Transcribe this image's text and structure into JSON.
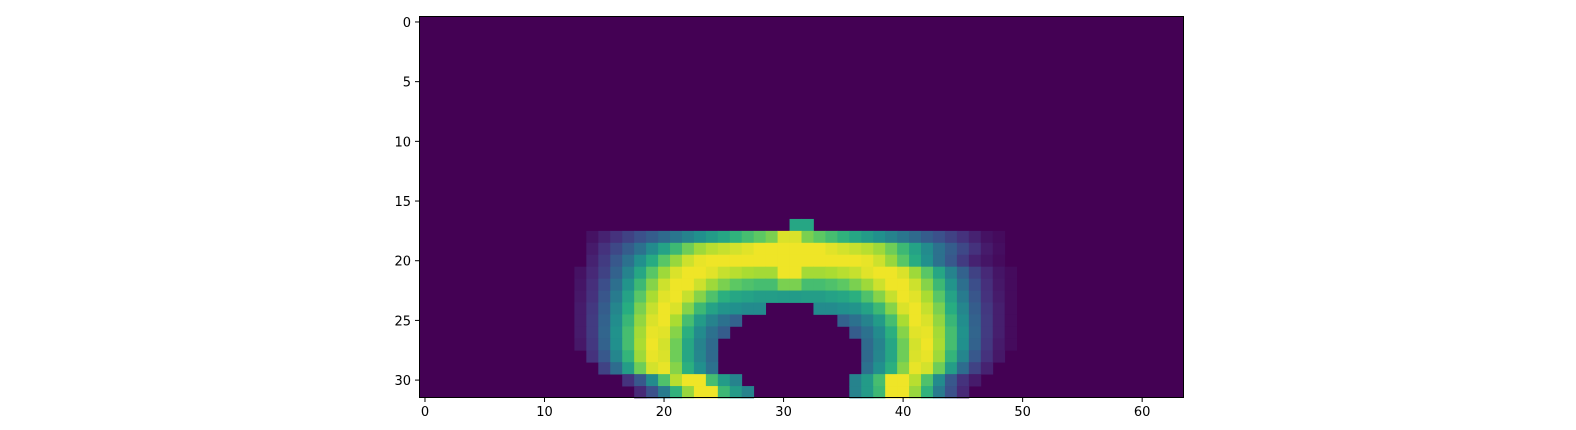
{
  "chart_data": {
    "type": "heatmap",
    "title": "",
    "xlabel": "",
    "ylabel": "",
    "shape": [
      32,
      64
    ],
    "xlim": [
      -0.5,
      63.5
    ],
    "ylim": [
      31.5,
      -0.5
    ],
    "origin": "upper",
    "colormap": "viridis",
    "value_range": [
      0,
      1
    ],
    "x_ticks": [
      0,
      10,
      20,
      30,
      40,
      50,
      60
    ],
    "y_ticks": [
      0,
      5,
      10,
      15,
      20,
      25,
      30
    ],
    "x_tick_labels": [
      "0",
      "10",
      "20",
      "30",
      "40",
      "50",
      "60"
    ],
    "y_tick_labels": [
      "0",
      "5",
      "10",
      "15",
      "20",
      "25",
      "30"
    ],
    "background_value": 0,
    "grid": false,
    "legend": "none",
    "rows": [
      {
        "row": 17,
        "start": 31,
        "values": [
          0.6,
          0.6
        ]
      },
      {
        "row": 18,
        "start": 14,
        "values": [
          0.05,
          0.1,
          0.15,
          0.2,
          0.25,
          0.3,
          0.35,
          0.4,
          0.45,
          0.5,
          0.55,
          0.6,
          0.65,
          0.7,
          0.75,
          0.8,
          0.95,
          0.95,
          0.8,
          0.75,
          0.7,
          0.65,
          0.6,
          0.55,
          0.5,
          0.45,
          0.4,
          0.35,
          0.3,
          0.25,
          0.2,
          0.15,
          0.1,
          0.05,
          0.03
        ]
      },
      {
        "row": 19,
        "start": 14,
        "values": [
          0.08,
          0.15,
          0.22,
          0.3,
          0.38,
          0.48,
          0.58,
          0.68,
          0.78,
          0.86,
          0.9,
          0.92,
          0.94,
          0.96,
          0.98,
          0.98,
          0.98,
          0.98,
          0.98,
          0.98,
          0.96,
          0.94,
          0.92,
          0.9,
          0.86,
          0.78,
          0.68,
          0.58,
          0.48,
          0.38,
          0.3,
          0.22,
          0.15,
          0.08,
          0.04
        ]
      },
      {
        "row": 20,
        "start": 14,
        "values": [
          0.1,
          0.18,
          0.28,
          0.38,
          0.5,
          0.62,
          0.74,
          0.85,
          0.93,
          0.97,
          0.98,
          0.98,
          0.98,
          0.98,
          0.98,
          0.98,
          0.98,
          0.98,
          0.98,
          0.98,
          0.98,
          0.98,
          0.98,
          0.97,
          0.93,
          0.85,
          0.74,
          0.62,
          0.5,
          0.38,
          0.28,
          0.18,
          0.1,
          0.06,
          0.03
        ]
      },
      {
        "row": 21,
        "start": 13,
        "values": [
          0.05,
          0.12,
          0.2,
          0.32,
          0.45,
          0.6,
          0.74,
          0.86,
          0.95,
          0.98,
          0.98,
          0.96,
          0.92,
          0.9,
          0.88,
          0.87,
          0.87,
          0.98,
          0.98,
          0.87,
          0.87,
          0.88,
          0.9,
          0.92,
          0.96,
          0.98,
          0.98,
          0.95,
          0.86,
          0.74,
          0.6,
          0.45,
          0.32,
          0.2,
          0.12,
          0.06,
          0.03
        ]
      },
      {
        "row": 22,
        "start": 13,
        "values": [
          0.06,
          0.14,
          0.24,
          0.37,
          0.52,
          0.68,
          0.82,
          0.93,
          0.98,
          0.98,
          0.93,
          0.86,
          0.8,
          0.75,
          0.72,
          0.7,
          0.7,
          0.8,
          0.8,
          0.7,
          0.7,
          0.72,
          0.75,
          0.8,
          0.86,
          0.93,
          0.98,
          0.98,
          0.93,
          0.82,
          0.68,
          0.52,
          0.37,
          0.24,
          0.14,
          0.07,
          0.03
        ]
      },
      {
        "row": 23,
        "start": 13,
        "values": [
          0.07,
          0.15,
          0.27,
          0.42,
          0.58,
          0.74,
          0.88,
          0.96,
          0.98,
          0.92,
          0.82,
          0.72,
          0.64,
          0.6,
          0.58,
          0.56,
          0.56,
          0.55,
          0.55,
          0.56,
          0.56,
          0.58,
          0.6,
          0.64,
          0.72,
          0.82,
          0.92,
          0.98,
          0.96,
          0.88,
          0.74,
          0.58,
          0.42,
          0.27,
          0.15,
          0.08,
          0.03
        ]
      },
      {
        "row": 24,
        "start": 13,
        "values": [
          0.08,
          0.17,
          0.3,
          0.46,
          0.63,
          0.8,
          0.92,
          0.98,
          0.95,
          0.82,
          0.68,
          0.58,
          0.52,
          0.5,
          0.48,
          0.48,
          0,
          0,
          0,
          0,
          0.48,
          0.48,
          0.5,
          0.52,
          0.58,
          0.68,
          0.82,
          0.95,
          0.98,
          0.92,
          0.8,
          0.63,
          0.46,
          0.3,
          0.17,
          0.09,
          0.03
        ]
      },
      {
        "row": 25,
        "start": 13,
        "values": [
          0.08,
          0.18,
          0.32,
          0.49,
          0.67,
          0.84,
          0.95,
          0.98,
          0.88,
          0.7,
          0.55,
          0.45,
          0.38,
          0.32,
          0,
          0,
          0,
          0,
          0,
          0,
          0,
          0,
          0.32,
          0.38,
          0.45,
          0.55,
          0.7,
          0.88,
          0.98,
          0.95,
          0.84,
          0.67,
          0.49,
          0.32,
          0.18,
          0.09,
          0.03
        ]
      },
      {
        "row": 26,
        "start": 13,
        "values": [
          0.08,
          0.18,
          0.33,
          0.51,
          0.7,
          0.87,
          0.97,
          0.96,
          0.82,
          0.64,
          0.48,
          0.38,
          0.3,
          0,
          0,
          0,
          0,
          0,
          0,
          0,
          0,
          0,
          0,
          0.3,
          0.38,
          0.48,
          0.64,
          0.82,
          0.96,
          0.97,
          0.87,
          0.7,
          0.51,
          0.33,
          0.18,
          0.09,
          0.03
        ]
      },
      {
        "row": 27,
        "start": 13,
        "values": [
          0.07,
          0.17,
          0.32,
          0.5,
          0.7,
          0.88,
          0.98,
          0.94,
          0.78,
          0.6,
          0.45,
          0.35,
          0,
          0,
          0,
          0,
          0,
          0,
          0,
          0,
          0,
          0,
          0,
          0,
          0.35,
          0.45,
          0.6,
          0.78,
          0.94,
          0.98,
          0.88,
          0.7,
          0.5,
          0.32,
          0.17,
          0.08,
          0.03
        ]
      },
      {
        "row": 28,
        "start": 14,
        "values": [
          0.15,
          0.28,
          0.46,
          0.66,
          0.86,
          0.97,
          0.95,
          0.78,
          0.6,
          0.46,
          0.35,
          0,
          0,
          0,
          0,
          0,
          0,
          0,
          0,
          0,
          0,
          0,
          0,
          0.35,
          0.46,
          0.6,
          0.78,
          0.95,
          0.97,
          0.86,
          0.66,
          0.46,
          0.28,
          0.15,
          0.07
        ]
      },
      {
        "row": 29,
        "start": 15,
        "values": [
          0.2,
          0.36,
          0.56,
          0.78,
          0.94,
          0.97,
          0.82,
          0.64,
          0.5,
          0.38,
          0,
          0,
          0,
          0,
          0,
          0,
          0,
          0,
          0,
          0,
          0,
          0,
          0.38,
          0.5,
          0.64,
          0.82,
          0.97,
          0.94,
          0.78,
          0.56,
          0.36,
          0.2,
          0.1
        ]
      },
      {
        "row": 30,
        "start": 17,
        "values": [
          0.15,
          0.28,
          0.48,
          0.72,
          0.9,
          0.98,
          0.98,
          0.7,
          0.55,
          0.45,
          0,
          0,
          0,
          0,
          0,
          0,
          0,
          0,
          0,
          0.45,
          0.55,
          0.7,
          0.98,
          0.98,
          0.9,
          0.72,
          0.48,
          0.28,
          0.15,
          0.08
        ]
      },
      {
        "row": 31,
        "start": 18,
        "values": [
          0.12,
          0.25,
          0.42,
          0.65,
          0.85,
          0.98,
          0.98,
          0.68,
          0.55,
          0.45,
          0,
          0,
          0,
          0,
          0,
          0,
          0,
          0,
          0.45,
          0.55,
          0.68,
          0.98,
          0.98,
          0.85,
          0.65,
          0.42,
          0.25,
          0.12
        ]
      }
    ]
  }
}
